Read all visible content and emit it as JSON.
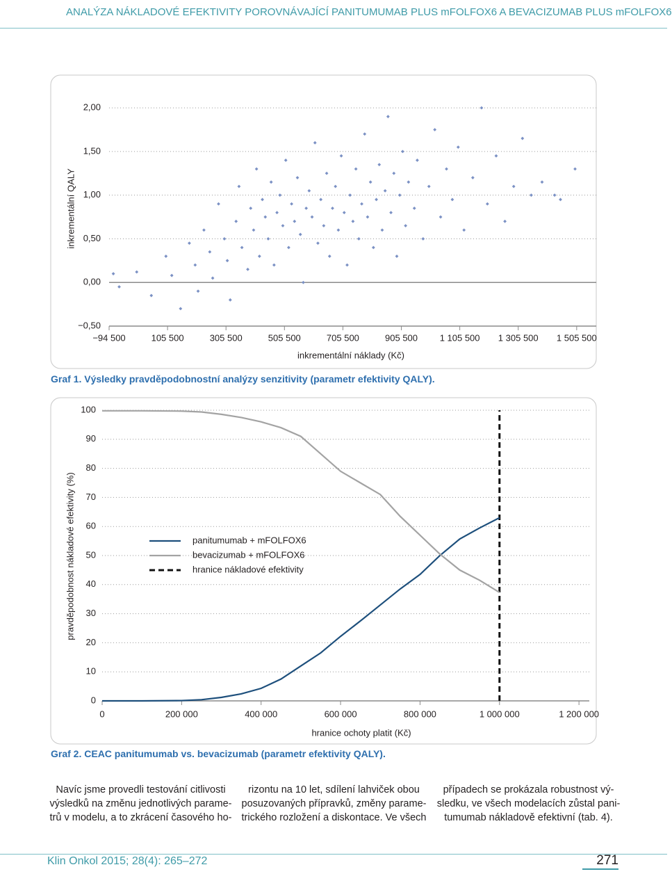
{
  "header": {
    "title": "ANALÝZA NÁKLADOVÉ EFEKTIVITY POROVNÁVAJÍCÍ PANITUMUMAB PLUS mFOLFOX6 A BEVACIZUMAB PLUS mFOLFOX6"
  },
  "chart_data": [
    {
      "type": "scatter",
      "caption": "Graf 1. Výsledky pravděpodobnostní analýzy senzitivity (parametr efektivity QALY).",
      "x_label": "inkrementální náklady (Kč)",
      "y_label": "inkrementální QALY",
      "color": "#7b91c4",
      "grid": true,
      "zero_line": true,
      "xlim": [
        -94500,
        1572500
      ],
      "ylim": [
        -0.5,
        2.2
      ],
      "xticks": [
        {
          "value": -94500,
          "label": "−94 500"
        },
        {
          "value": 105500,
          "label": "105 500"
        },
        {
          "value": 305500,
          "label": "305 500"
        },
        {
          "value": 505500,
          "label": "505 500"
        },
        {
          "value": 705500,
          "label": "705 500"
        },
        {
          "value": 905500,
          "label": "905 500"
        },
        {
          "value": 1105500,
          "label": "1 105 500"
        },
        {
          "value": 1305500,
          "label": "1 305 500"
        },
        {
          "value": 1505500,
          "label": "1 505 500"
        }
      ],
      "yticks": [
        {
          "value": -0.5,
          "label": "−0,50"
        },
        {
          "value": 0,
          "label": "0,00"
        },
        {
          "value": 0.5,
          "label": "0,50"
        },
        {
          "value": 1,
          "label": "1,00"
        },
        {
          "value": 1.5,
          "label": "1,50"
        },
        {
          "value": 2,
          "label": "2,00"
        }
      ],
      "x": [
        -80000,
        -60000,
        0,
        50000,
        100000,
        120000,
        150000,
        180000,
        200000,
        210000,
        230000,
        250000,
        260000,
        280000,
        300000,
        310000,
        320000,
        340000,
        350000,
        360000,
        380000,
        390000,
        400000,
        410000,
        420000,
        430000,
        440000,
        450000,
        460000,
        470000,
        480000,
        490000,
        500000,
        510000,
        520000,
        530000,
        540000,
        550000,
        560000,
        570000,
        580000,
        590000,
        600000,
        610000,
        620000,
        630000,
        640000,
        650000,
        660000,
        670000,
        680000,
        690000,
        700000,
        710000,
        720000,
        730000,
        740000,
        750000,
        760000,
        770000,
        780000,
        790000,
        800000,
        810000,
        820000,
        830000,
        840000,
        850000,
        860000,
        870000,
        880000,
        890000,
        900000,
        910000,
        920000,
        930000,
        950000,
        960000,
        980000,
        1000000,
        1020000,
        1040000,
        1060000,
        1080000,
        1100000,
        1120000,
        1150000,
        1180000,
        1200000,
        1230000,
        1260000,
        1290000,
        1320000,
        1350000,
        1387000,
        1430000,
        1450000,
        1500000
      ],
      "values": [
        0.1,
        -0.05,
        0.12,
        -0.15,
        0.3,
        0.08,
        -0.3,
        0.45,
        0.2,
        -0.1,
        0.6,
        0.35,
        0.05,
        0.9,
        0.5,
        0.25,
        -0.2,
        0.7,
        1.1,
        0.4,
        0.15,
        0.85,
        0.6,
        1.3,
        0.3,
        0.95,
        0.75,
        0.5,
        1.15,
        0.2,
        0.8,
        1.0,
        0.65,
        1.4,
        0.4,
        0.9,
        0.7,
        1.2,
        0.55,
        0.0,
        0.85,
        1.05,
        0.75,
        1.6,
        0.45,
        0.95,
        0.65,
        1.25,
        0.3,
        0.85,
        1.1,
        0.6,
        1.45,
        0.8,
        0.2,
        1.0,
        0.7,
        1.3,
        0.5,
        0.9,
        1.7,
        0.75,
        1.15,
        0.4,
        0.95,
        1.35,
        0.6,
        1.05,
        1.9,
        0.8,
        1.25,
        0.3,
        1.0,
        1.5,
        0.65,
        1.15,
        0.85,
        1.4,
        0.5,
        1.1,
        1.75,
        0.75,
        1.3,
        0.95,
        1.55,
        0.6,
        1.2,
        2.0,
        0.9,
        1.45,
        0.7,
        1.1,
        1.65,
        1.0,
        1.15,
        1.0,
        0.95,
        1.3
      ]
    },
    {
      "type": "line",
      "caption": "Graf 2. CEAC panitumumab vs. bevacizumab (parametr efektivity QALY).",
      "x_label": "hranice ochoty platit (Kč)",
      "y_label": "pravděpodobnost nákladové efektivity (%)",
      "grid": true,
      "xlim": [
        0,
        1226000
      ],
      "ylim": [
        0,
        100
      ],
      "xticks": [
        0,
        {
          "value": 200000,
          "label": "200 000"
        },
        {
          "value": 400000,
          "label": "400 000"
        },
        {
          "value": 600000,
          "label": "600 000"
        },
        {
          "value": 800000,
          "label": "800 000"
        },
        {
          "value": 1000000,
          "label": "1 000 000"
        },
        {
          "value": 1200000,
          "label": "1 200 000"
        }
      ],
      "yticks": [
        0,
        10,
        20,
        30,
        40,
        50,
        60,
        70,
        80,
        90,
        100
      ],
      "x": [
        0,
        100000,
        200000,
        250000,
        300000,
        350000,
        400000,
        450000,
        500000,
        550000,
        600000,
        650000,
        700000,
        750000,
        800000,
        850000,
        900000,
        950000,
        1000000
      ],
      "series": [
        {
          "name": "panitumumab + mFOLFOX6",
          "color": "#1d4f7c",
          "values": [
            0,
            0,
            0.1,
            0.4,
            1.2,
            2.4,
            4.3,
            7.5,
            12,
            16.5,
            22.2,
            27.5,
            33,
            38.5,
            43.5,
            50,
            55.7,
            59.5,
            63
          ]
        },
        {
          "name": "bevacizumab + mFOLFOX6",
          "color": "#a3a3a3",
          "values": [
            99.8,
            99.8,
            99.7,
            99.4,
            98.6,
            97.5,
            96,
            94,
            91,
            85,
            79,
            75,
            71,
            63.5,
            57,
            50.5,
            45,
            41.5,
            37.3
          ]
        }
      ],
      "threshold": {
        "name": "hranice nákladové efektivity",
        "x": 1000000,
        "color": "#111111"
      }
    }
  ],
  "body": {
    "columns": [
      [
        "Navíc jsme provedli testování citlivosti",
        "výsledků na změnu jednotlivých parame-",
        "trů v modelu, a to zkrácení časového ho-"
      ],
      [
        "rizontu na 10 let, sdílení lahviček obou",
        "posuzovaných přípravků, změny parame-",
        "trického rozložení a diskontace. Ve všech"
      ],
      [
        "případech se prokázala robustnost vý-",
        "sledku, ve všech modelacích zůstal pani-",
        "tumumab nákladově efektivní (tab. 4)."
      ]
    ]
  },
  "footer": {
    "journal": "Klin Onkol 2015; 28(4): 265–272",
    "page": "271"
  }
}
